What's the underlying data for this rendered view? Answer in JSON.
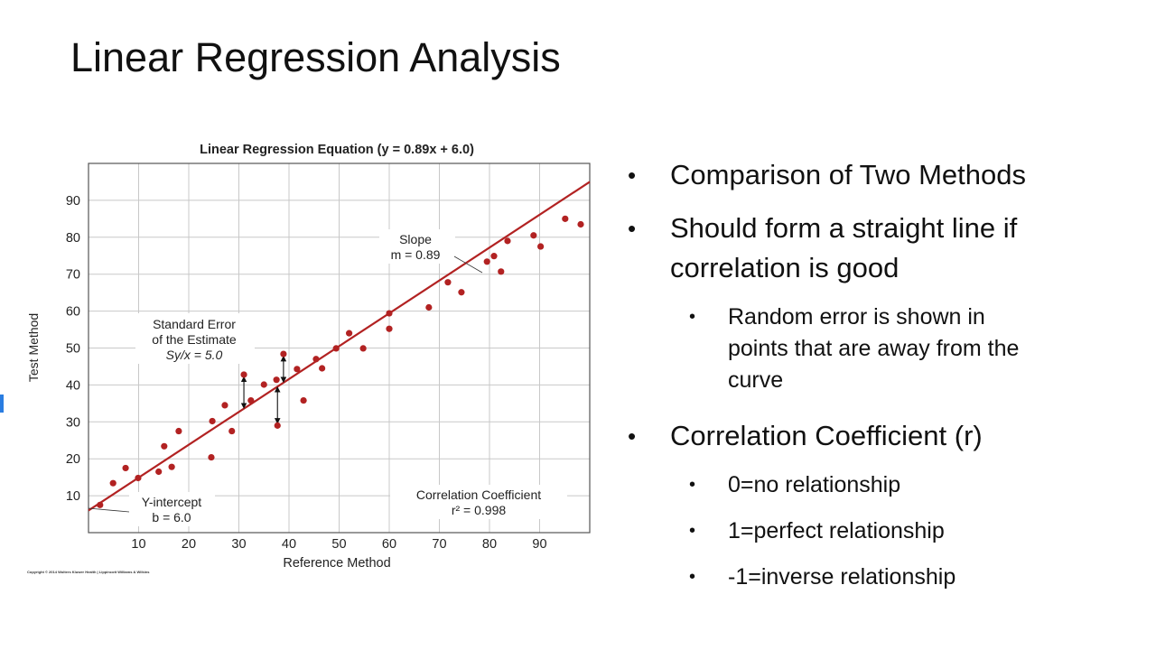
{
  "slide": {
    "title": "Linear Regression Analysis",
    "copyright": "Copyright © 2014 Wolters Kluwer Health | Lippincott Williams & Wilkins",
    "bullets": [
      {
        "level": 1,
        "text": "Comparison of Two Methods"
      },
      {
        "level": 1,
        "text": "Should form a straight line if correlation is good"
      },
      {
        "level": 2,
        "text": "Random error is shown in points that are away from the curve"
      },
      {
        "level": 1,
        "text": "Correlation Coefficient (r)"
      },
      {
        "level": 2,
        "text": "0=no relationship"
      },
      {
        "level": 2,
        "text": "1=perfect relationship"
      },
      {
        "level": 2,
        "text": "-1=inverse relationship"
      }
    ]
  },
  "chart_data": {
    "type": "scatter",
    "title": "Linear Regression Equation (y = 0.89x + 6.0)",
    "xlabel": "Reference Method",
    "ylabel": "Test Method",
    "xlim": [
      0,
      100
    ],
    "ylim": [
      0,
      100
    ],
    "xticks": [
      "10",
      "20",
      "30",
      "40",
      "50",
      "60",
      "70",
      "80",
      "90"
    ],
    "yticks": [
      "10",
      "20",
      "30",
      "40",
      "50",
      "60",
      "70",
      "80",
      "90"
    ],
    "grid": true,
    "point_color": "#b22222",
    "line_color": "#b22222",
    "regression": {
      "slope": 0.89,
      "intercept": 6.0
    },
    "points": [
      [
        2.3,
        7.5
      ],
      [
        4.9,
        13.4
      ],
      [
        7.4,
        17.5
      ],
      [
        9.9,
        14.8
      ],
      [
        14,
        16.5
      ],
      [
        15.1,
        23.4
      ],
      [
        16.6,
        17.8
      ],
      [
        18,
        27.5
      ],
      [
        24.5,
        20.4
      ],
      [
        24.7,
        30.2
      ],
      [
        27.2,
        34.5
      ],
      [
        28.6,
        27.5
      ],
      [
        31,
        42.8
      ],
      [
        32.4,
        35.8
      ],
      [
        35,
        40.1
      ],
      [
        37.5,
        41.4
      ],
      [
        37.7,
        29
      ],
      [
        38.9,
        48.4
      ],
      [
        41.6,
        44.3
      ],
      [
        42.9,
        35.8
      ],
      [
        45.4,
        47
      ],
      [
        46.6,
        44.5
      ],
      [
        49.4,
        49.9
      ],
      [
        52,
        54
      ],
      [
        54.8,
        49.9
      ],
      [
        60,
        59.4
      ],
      [
        60,
        55.2
      ],
      [
        67.9,
        61
      ],
      [
        71.7,
        67.8
      ],
      [
        74.4,
        65.1
      ],
      [
        79.5,
        73.4
      ],
      [
        80.9,
        74.9
      ],
      [
        82.3,
        70.7
      ],
      [
        83.6,
        79
      ],
      [
        88.8,
        80.5
      ],
      [
        90.2,
        77.5
      ],
      [
        95.1,
        85
      ],
      [
        98.2,
        83.5
      ]
    ],
    "error_arrows_at_x": [
      31,
      37.7,
      38.9
    ],
    "annotations": {
      "std_error": [
        "Standard Error",
        "of the Estimate",
        "Sy/x = 5.0"
      ],
      "slope": [
        "Slope",
        "m = 0.89"
      ],
      "intercept": [
        "Y-intercept",
        "b = 6.0"
      ],
      "correlation": [
        "Correlation Coefficient",
        "r² = 0.998"
      ]
    }
  }
}
